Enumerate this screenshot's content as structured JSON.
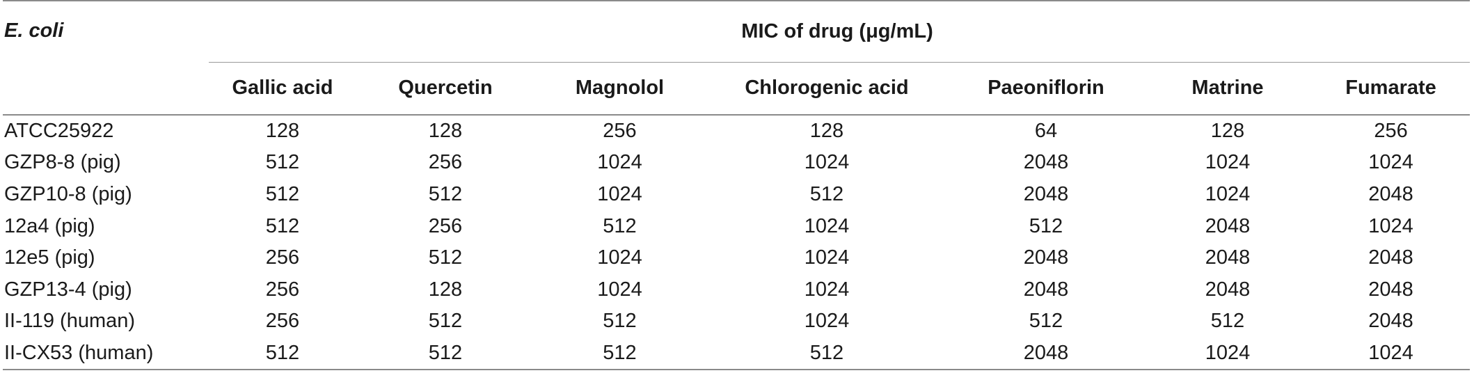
{
  "table": {
    "corner_label": "E. coli",
    "group_header": "MIC of drug (μg/mL)",
    "columns": [
      "Gallic acid",
      "Quercetin",
      "Magnolol",
      "Chlorogenic acid",
      "Paeoniflorin",
      "Matrine",
      "Fumarate"
    ],
    "rows": [
      {
        "strain": "ATCC25922",
        "values": [
          "128",
          "128",
          "256",
          "128",
          "64",
          "128",
          "256"
        ]
      },
      {
        "strain": "GZP8-8 (pig)",
        "values": [
          "512",
          "256",
          "1024",
          "1024",
          "2048",
          "1024",
          "1024"
        ]
      },
      {
        "strain": "GZP10-8 (pig)",
        "values": [
          "512",
          "512",
          "1024",
          "512",
          "2048",
          "1024",
          "2048"
        ]
      },
      {
        "strain": "12a4 (pig)",
        "values": [
          "512",
          "256",
          "512",
          "1024",
          "512",
          "2048",
          "1024"
        ]
      },
      {
        "strain": "12e5 (pig)",
        "values": [
          "256",
          "512",
          "1024",
          "1024",
          "2048",
          "2048",
          "2048"
        ]
      },
      {
        "strain": "GZP13-4 (pig)",
        "values": [
          "256",
          "128",
          "1024",
          "1024",
          "2048",
          "2048",
          "2048"
        ]
      },
      {
        "strain": "II-119 (human)",
        "values": [
          "256",
          "512",
          "512",
          "1024",
          "512",
          "512",
          "2048"
        ]
      },
      {
        "strain": "II-CX53 (human)",
        "values": [
          "512",
          "512",
          "512",
          "512",
          "2048",
          "1024",
          "1024"
        ]
      }
    ]
  }
}
